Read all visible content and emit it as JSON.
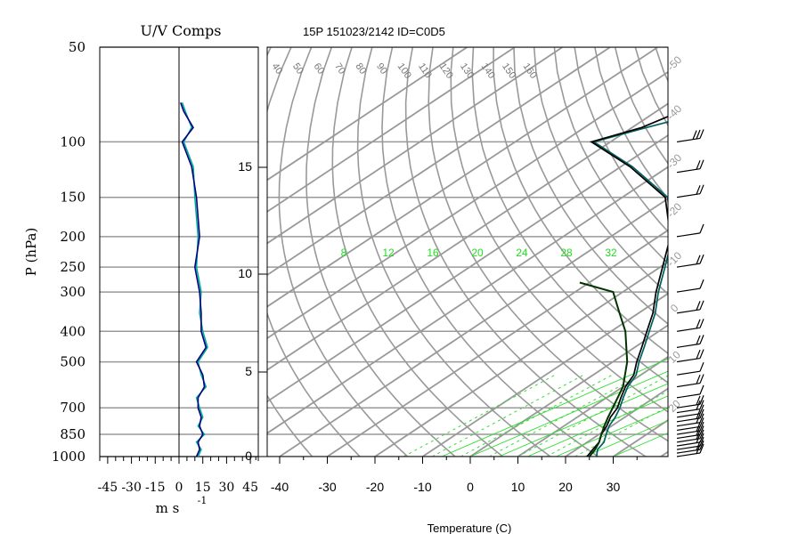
{
  "header": {
    "uv_title": "U/V Comps",
    "station_title": "15P 151023/2142 ID=C0D5"
  },
  "left_panel": {
    "ylabel": "P (hPa)",
    "pressure_ticks": [
      50,
      100,
      150,
      200,
      250,
      300,
      400,
      500,
      700,
      850,
      1000
    ],
    "x_ticks": [
      -45,
      -30,
      -15,
      0,
      15,
      30,
      45
    ],
    "xlabel": "m s",
    "xlabel_exponent": "-1",
    "colors": {
      "u_wind": "#00aa99",
      "v_wind": "#000080",
      "grid": "#999999"
    },
    "chart_data": {
      "type": "line",
      "title": "U/V Comps",
      "ylabel": "P (hPa)",
      "xlabel": "m s-1",
      "xlim": [
        -50,
        50
      ],
      "ylim": [
        1000,
        50
      ],
      "pressure": [
        1000,
        950,
        900,
        850,
        800,
        750,
        700,
        650,
        600,
        550,
        500,
        450,
        400,
        350,
        300,
        250,
        200,
        150,
        120,
        100,
        90,
        80,
        75
      ],
      "series": [
        {
          "values": [
            12,
            14,
            11,
            16,
            12,
            15,
            13,
            11,
            17,
            14,
            12,
            18,
            15,
            13,
            14,
            11,
            12,
            10,
            9,
            3,
            8,
            4,
            2
          ]
        },
        {
          "values": [
            11,
            13,
            12,
            15,
            13,
            14,
            12,
            12,
            16,
            15,
            11,
            17,
            14,
            14,
            13,
            10,
            13,
            11,
            8,
            2,
            9,
            3,
            1
          ]
        }
      ]
    }
  },
  "right_panel": {
    "xlabel": "Temperature (C)",
    "temp_ticks": [
      -40,
      -30,
      -20,
      -10,
      0,
      10,
      20,
      30
    ],
    "height_ticks": [
      0,
      5,
      10,
      15
    ],
    "theta_labels": [
      "40",
      "50",
      "60",
      "70",
      "80",
      "90",
      "100",
      "110",
      "120",
      "130",
      "140",
      "150",
      "160"
    ],
    "mixing_ratio_labels": [
      "8",
      "12",
      "16",
      "20",
      "24",
      "28",
      "32"
    ],
    "isotherm_labels": [
      "-50",
      "-40",
      "-30",
      "-20",
      "-10",
      "0",
      "10",
      "20"
    ],
    "colors": {
      "temperature": "#006060",
      "dewpoint": "#000000",
      "parcel": "#003300",
      "moist": "#33dd33",
      "grid": "#999999"
    },
    "chart_data": {
      "type": "line",
      "title": "15P 151023/2142 ID=C0D5",
      "xlabel": "Temperature (C)",
      "xlim": [
        -43,
        40
      ],
      "pressure": [
        1000,
        950,
        900,
        850,
        800,
        750,
        700,
        650,
        600,
        550,
        500,
        450,
        400,
        350,
        300,
        250,
        200,
        150,
        120,
        100,
        90,
        80,
        70
      ],
      "series": [
        {
          "name": "temperature",
          "values": [
            26.5,
            24.5,
            23.5,
            21.5,
            19.5,
            18.0,
            16.0,
            13.5,
            11.0,
            9.0,
            5.5,
            2.0,
            -2.0,
            -6.5,
            -12.5,
            -19.0,
            -27.0,
            -40.5,
            -57.5,
            -73.5,
            -67.0,
            -59.0,
            -57.0
          ]
        },
        {
          "name": "dewpoint",
          "values": [
            24.5,
            23.5,
            22.5,
            20.5,
            19.0,
            17.0,
            15.5,
            13.0,
            10.5,
            8.5,
            5.0,
            1.5,
            -2.5,
            -7.0,
            -13.0,
            -19.5,
            -27.5,
            -41.0,
            -58.0,
            -74.0,
            -68.0,
            -65.0,
            -60.0
          ]
        },
        {
          "name": "parcel",
          "pressure": [
            1000,
            950,
            900,
            850,
            800,
            750,
            700,
            600,
            500,
            400,
            350,
            300,
            280
          ],
          "values": [
            25,
            24,
            22.5,
            20.5,
            18.5,
            16.5,
            14.5,
            10,
            3,
            -7,
            -14,
            -22,
            -32
          ]
        }
      ]
    }
  },
  "wind_barbs": {
    "pressure": [
      1000,
      975,
      950,
      925,
      900,
      875,
      850,
      825,
      800,
      775,
      750,
      725,
      700,
      650,
      600,
      550,
      500,
      450,
      400,
      350,
      300,
      250,
      200,
      150,
      125,
      100
    ],
    "speed_kt": [
      15,
      15,
      10,
      15,
      15,
      20,
      15,
      10,
      15,
      15,
      10,
      15,
      15,
      10,
      15,
      10,
      15,
      15,
      15,
      15,
      10,
      15,
      10,
      20,
      15,
      25
    ]
  }
}
